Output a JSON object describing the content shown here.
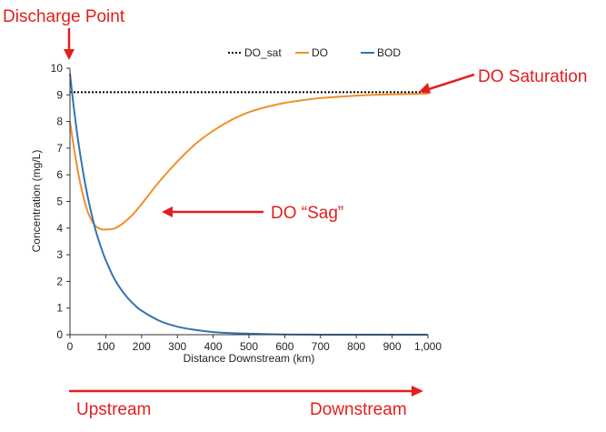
{
  "chart_data": {
    "type": "line",
    "xlabel": "Distance Downstream (km)",
    "ylabel": "Concentration (mg/L)",
    "xlim": [
      0,
      1000
    ],
    "ylim": [
      0,
      10
    ],
    "x_ticks": [
      0,
      100,
      200,
      300,
      400,
      500,
      600,
      700,
      800,
      900,
      1000
    ],
    "x_tick_labels": [
      "0",
      "100",
      "200",
      "300",
      "400",
      "500",
      "600",
      "700",
      "800",
      "900",
      "1,000"
    ],
    "y_ticks": [
      0,
      1,
      2,
      3,
      4,
      5,
      6,
      7,
      8,
      9,
      10
    ],
    "y_tick_labels": [
      "0",
      "1",
      "2",
      "3",
      "4",
      "5",
      "6",
      "7",
      "8",
      "9",
      "10"
    ],
    "grid": false,
    "legend_placement": "top",
    "series": [
      {
        "name": "DO_sat",
        "color": "#000000",
        "style": "dotted",
        "x": [
          0,
          1000
        ],
        "y": [
          9.1,
          9.1
        ]
      },
      {
        "name": "DO",
        "color": "#f28e2b",
        "style": "solid",
        "x": [
          0,
          10,
          20,
          30,
          40,
          50,
          60,
          70,
          80,
          90,
          100,
          110,
          120,
          130,
          140,
          150,
          175,
          200,
          250,
          300,
          350,
          400,
          450,
          500,
          550,
          600,
          650,
          700,
          750,
          800,
          850,
          900,
          950,
          1000
        ],
        "y": [
          8.0,
          7.1,
          6.3,
          5.6,
          5.05,
          4.6,
          4.3,
          4.1,
          4.0,
          3.95,
          3.95,
          3.95,
          3.97,
          4.02,
          4.1,
          4.2,
          4.5,
          4.9,
          5.75,
          6.5,
          7.15,
          7.65,
          8.05,
          8.35,
          8.55,
          8.7,
          8.8,
          8.88,
          8.93,
          8.97,
          9.0,
          9.02,
          9.03,
          9.05
        ]
      },
      {
        "name": "BOD",
        "color": "#2e75b6",
        "style": "solid",
        "x": [
          0,
          10,
          20,
          30,
          40,
          50,
          60,
          70,
          80,
          90,
          100,
          120,
          140,
          160,
          180,
          200,
          250,
          300,
          350,
          400,
          450,
          500,
          550,
          600,
          700,
          800,
          900,
          1000
        ],
        "y": [
          9.8,
          8.6,
          7.55,
          6.65,
          5.85,
          5.15,
          4.55,
          4.0,
          3.55,
          3.15,
          2.8,
          2.2,
          1.75,
          1.4,
          1.12,
          0.9,
          0.52,
          0.3,
          0.18,
          0.1,
          0.06,
          0.04,
          0.02,
          0.01,
          0.0,
          0.0,
          0.0,
          0.0
        ]
      }
    ],
    "annotations": {
      "discharge": "Discharge Point",
      "saturation": "DO Saturation",
      "sag": "DO “Sag”",
      "upstream": "Upstream",
      "downstream": "Downstream"
    },
    "annotation_color": "#e41e1e"
  }
}
